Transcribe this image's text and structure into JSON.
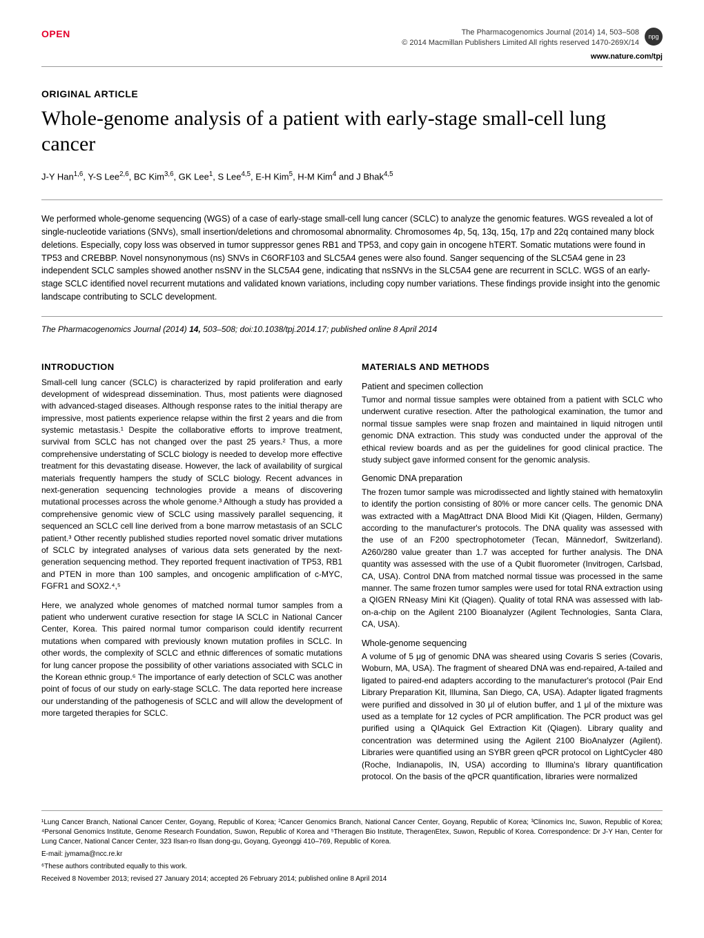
{
  "header": {
    "open_label": "OPEN",
    "journal_line": "The Pharmacogenomics Journal (2014) 14, 503–508",
    "copyright": "© 2014 Macmillan Publishers Limited   All rights reserved 1470-269X/14",
    "url": "www.nature.com/tpj",
    "npg": "npg"
  },
  "article": {
    "type": "ORIGINAL ARTICLE",
    "title": "Whole-genome analysis of a patient with early-stage small-cell lung cancer",
    "authors_html": "J-Y Han<sup>1,6</sup>, Y-S Lee<sup>2,6</sup>, BC Kim<sup>3,6</sup>, GK Lee<sup>1</sup>, S Lee<sup>4,5</sup>, E-H Kim<sup>5</sup>, H-M Kim<sup>4</sup> and J Bhak<sup>4,5</sup>",
    "abstract": "We performed whole-genome sequencing (WGS) of a case of early-stage small-cell lung cancer (SCLC) to analyze the genomic features. WGS revealed a lot of single-nucleotide variations (SNVs), small insertion/deletions and chromosomal abnormality. Chromosomes 4p, 5q, 13q, 15q, 17p and 22q contained many block deletions. Especially, copy loss was observed in tumor suppressor genes RB1 and TP53, and copy gain in oncogene hTERT. Somatic mutations were found in TP53 and CREBBP. Novel nonsynonymous (ns) SNVs in C6ORF103 and SLC5A4 genes were also found. Sanger sequencing of the SLC5A4 gene in 23 independent SCLC samples showed another nsSNV in the SLC5A4 gene, indicating that nsSNVs in the SLC5A4 gene are recurrent in SCLC. WGS of an early-stage SCLC identified novel recurrent mutations and validated known variations, including copy number variations. These findings provide insight into the genomic landscape contributing to SCLC development.",
    "citation_html": "<span class='italic'>The Pharmacogenomics Journal</span> (2014) <b>14,</b> 503–508; doi:10.1038/tpj.2014.17; published online 8 April 2014"
  },
  "intro": {
    "heading": "INTRODUCTION",
    "p1": "Small-cell lung cancer (SCLC) is characterized by rapid proliferation and early development of widespread dissemination. Thus, most patients were diagnosed with advanced-staged diseases. Although response rates to the initial therapy are impressive, most patients experience relapse within the first 2 years and die from systemic metastasis.¹ Despite the collaborative efforts to improve treatment, survival from SCLC has not changed over the past 25 years.² Thus, a more comprehensive understating of SCLC biology is needed to develop more effective treatment for this devastating disease. However, the lack of availability of surgical materials frequently hampers the study of SCLC biology. Recent advances in next-generation sequencing technologies provide a means of discovering mutational processes across the whole genome.³ Although a study has provided a comprehensive genomic view of SCLC using massively parallel sequencing, it sequenced an SCLC cell line derived from a bone marrow metastasis of an SCLC patient.³ Other recently published studies reported novel somatic driver mutations of SCLC by integrated analyses of various data sets generated by the next-generation sequencing method. They reported frequent inactivation of TP53, RB1 and PTEN in more than 100 samples, and oncogenic amplification of c-MYC, FGFR1 and SOX2.⁴,⁵",
    "p2": "Here, we analyzed whole genomes of matched normal tumor samples from a patient who underwent curative resection for stage IA SCLC in National Cancer Center, Korea. This paired normal tumor comparison could identify recurrent mutations when compared with previously known mutation profiles in SCLC. In other words, the complexity of SCLC and ethnic differences of somatic mutations for lung cancer propose the possibility of other variations associated with SCLC in the Korean ethnic group.⁶ The importance of early detection of SCLC was another point of focus of our study on early-stage SCLC. The data reported here increase our understanding of the pathogenesis of SCLC and will allow the development of more targeted therapies for SCLC."
  },
  "methods": {
    "heading": "MATERIALS AND METHODS",
    "s1_head": "Patient and specimen collection",
    "s1_text": "Tumor and normal tissue samples were obtained from a patient with SCLC who underwent curative resection. After the pathological examination, the tumor and normal tissue samples were snap frozen and maintained in liquid nitrogen until genomic DNA extraction. This study was conducted under the approval of the ethical review boards and as per the guidelines for good clinical practice. The study subject gave informed consent for the genomic analysis.",
    "s2_head": "Genomic DNA preparation",
    "s2_text": "The frozen tumor sample was microdissected and lightly stained with hematoxylin to identify the portion consisting of 80% or more cancer cells. The genomic DNA was extracted with a MagAttract DNA Blood Midi Kit (Qiagen, Hilden, Germany) according to the manufacturer's protocols. The DNA quality was assessed with the use of an F200 spectrophotometer (Tecan, Männedorf, Switzerland). A260/280 value greater than 1.7 was accepted for further analysis. The DNA quantity was assessed with the use of a Qubit fluorometer (Invitrogen, Carlsbad, CA, USA). Control DNA from matched normal tissue was processed in the same manner. The same frozen tumor samples were used for total RNA extraction using a QIGEN RNeasy Mini Kit (Qiagen). Quality of total RNA was assessed with lab-on-a-chip on the Agilent 2100 Bioanalyzer (Agilent Technologies, Santa Clara, CA, USA).",
    "s3_head": "Whole-genome sequencing",
    "s3_text": "A volume of 5 μg of genomic DNA was sheared using Covaris S series (Covaris, Woburn, MA, USA). The fragment of sheared DNA was end-repaired, A-tailed and ligated to paired-end adapters according to the manufacturer's protocol (Pair End Library Preparation Kit, Illumina, San Diego, CA, USA). Adapter ligated fragments were purified and dissolved in 30 μl of elution buffer, and 1 μl of the mixture was used as a template for 12 cycles of PCR amplification. The PCR product was gel purified using a QIAquick Gel Extraction Kit (Qiagen). Library quality and concentration was determined using the Agilent 2100 BioAnalyzer (Agilent). Libraries were quantified using an SYBR green qPCR protocol on LightCycler 480 (Roche, Indianapolis, IN, USA) according to Illumina's library quantification protocol. On the basis of the qPCR quantification, libraries were normalized"
  },
  "footer": {
    "affiliations": "¹Lung Cancer Branch, National Cancer Center, Goyang, Republic of Korea; ²Cancer Genomics Branch, National Cancer Center, Goyang, Republic of Korea; ³Clinomics Inc, Suwon, Republic of Korea; ⁴Personal Genomics Institute, Genome Research Foundation, Suwon, Republic of Korea and ⁵Theragen Bio Institute, TheragenEtex, Suwon, Republic of Korea. Correspondence: Dr J-Y Han, Center for Lung Cancer, National Cancer Center, 323 Ilsan-ro Ilsan dong-gu, Goyang, Gyeonggi 410–769, Republic of Korea.",
    "email": "E-mail: jymama@ncc.re.kr",
    "equal": "⁶These authors contributed equally to this work.",
    "dates": "Received 8 November 2013; revised 27 January 2014; accepted 26 February 2014; published online 8 April 2014"
  }
}
